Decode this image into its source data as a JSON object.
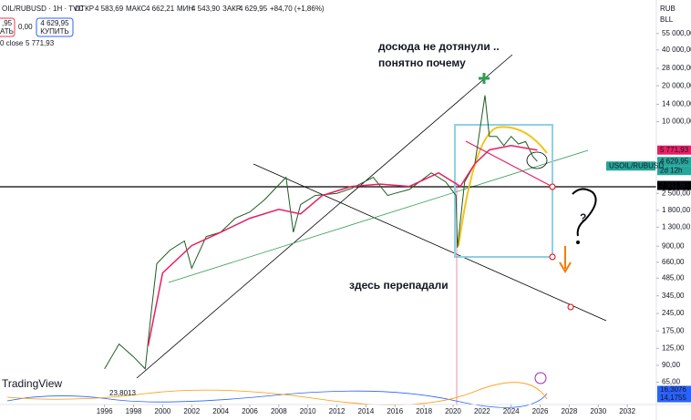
{
  "header": {
    "symbol": "OIL/RUBUSD · 1H · TVC",
    "open_label": "ОТКР",
    "open": "4 583,69",
    "high_label": "МАКС",
    "high": "4 662,21",
    "low_label": "МИН",
    "low": "4 543,90",
    "close_label": "ЗАКР",
    "close": "4 629,95",
    "change": "+84,70 (+1,86%)",
    "sell_price": ",95",
    "sell": "АТЬ",
    "spread": "0,00",
    "buy_price": "4 629,95",
    "buy": "КУПИТЬ",
    "ma_legend": "0 close",
    "ma_value": "5 771,93",
    "currency": "RUB",
    "unit": "BLL"
  },
  "chart_data": {
    "type": "line",
    "x": [
      1996.0,
      1997.0,
      1998.0,
      1998.8,
      1999.2,
      1999.6,
      2000.5,
      2001.5,
      2002.0,
      2003.0,
      2004.0,
      2005.0,
      2006.0,
      2007.0,
      2008.5,
      2009.0,
      2009.5,
      2010.5,
      2012.0,
      2013.0,
      2014.5,
      2015.5,
      2016.0,
      2017.0,
      2018.5,
      2019.5,
      2020.2,
      2020.3,
      2020.8,
      2021.5,
      2022.2,
      2022.5,
      2023.0,
      2023.5,
      2024.0,
      2024.5,
      2025.0,
      2025.5,
      2025.8
    ],
    "series": [
      {
        "color": "#1b5e20",
        "values": [
          84,
          136,
          106,
          84,
          243,
          642,
          833,
          995,
          588,
          1083,
          1180,
          1545,
          1745,
          2200,
          3410,
          1180,
          2010,
          2400,
          2500,
          2750,
          3410,
          2400,
          2500,
          2700,
          3720,
          3120,
          2400,
          875,
          3120,
          4430,
          16600,
          7520,
          7520,
          6300,
          7520,
          6500,
          6800,
          5100,
          4630
        ]
      }
    ],
    "ma": {
      "color": "#e91e63",
      "x": [
        1999.0,
        2000.0,
        2002.0,
        2004.0,
        2006.0,
        2008.0,
        2009.5,
        2011.0,
        2013.0,
        2015.0,
        2017.0,
        2019.0,
        2020.5,
        2021.5,
        2022.5,
        2024.0,
        2025.8
      ],
      "values": [
        131,
        537,
        911,
        1180,
        1545,
        1835,
        1680,
        2400,
        2860,
        2990,
        2860,
        3720,
        2860,
        4430,
        5790,
        6300,
        5772
      ]
    },
    "xlim": [
      1988.8,
      2034.0
    ],
    "xticks": [
      1996,
      1998,
      2000,
      2002,
      2004,
      2006,
      2008,
      2010,
      2012,
      2014,
      2016,
      2018,
      2020,
      2022,
      2024,
      2026,
      2028,
      2030,
      2032
    ],
    "ylim": [
      54,
      105000
    ],
    "log_scale": true,
    "grid": false,
    "yticks": [
      {
        "value": 55000,
        "label": "55 000,00"
      },
      {
        "value": 40000,
        "label": "40 000,00"
      },
      {
        "value": 28000,
        "label": "28 000,00"
      },
      {
        "value": 20000,
        "label": "20 000,00"
      },
      {
        "value": 14000,
        "label": "14 000,00"
      },
      {
        "value": 10000,
        "label": "10 000,00"
      },
      {
        "value": 2500,
        "label": "2 500,00"
      },
      {
        "value": 1800,
        "label": "1 800,00"
      },
      {
        "value": 1300,
        "label": "1 300,00"
      },
      {
        "value": 900,
        "label": "900,00"
      },
      {
        "value": 660,
        "label": "660,00"
      },
      {
        "value": 485,
        "label": "485,00"
      },
      {
        "value": 345,
        "label": "345,00"
      },
      {
        "value": 245,
        "label": "245,00"
      },
      {
        "value": 175,
        "label": "175,00"
      },
      {
        "value": 125,
        "label": "125,00"
      },
      {
        "value": 90,
        "label": "90,00"
      },
      {
        "value": 65,
        "label": "65,00"
      }
    ],
    "price_tags": [
      {
        "value": 5771.93,
        "label": "5 771,93",
        "color": "#e91e63"
      },
      {
        "value": 4629.95,
        "label": "4 629,95",
        "color": "#26a69a"
      },
      {
        "value": 2911.8,
        "label": "2 911,80",
        "color": "#000000"
      }
    ],
    "countdown": "2d 12h",
    "symbol_tag": "USOIL/RUBUSD",
    "annotations": [
      "досюда не дотянули ..",
      "понятно почему",
      "здесь перепадали",
      "?"
    ],
    "indicator": {
      "legend": "23,8013",
      "tags": [
        "16,3076",
        "14,1755"
      ]
    },
    "watermark": "TradingView"
  }
}
